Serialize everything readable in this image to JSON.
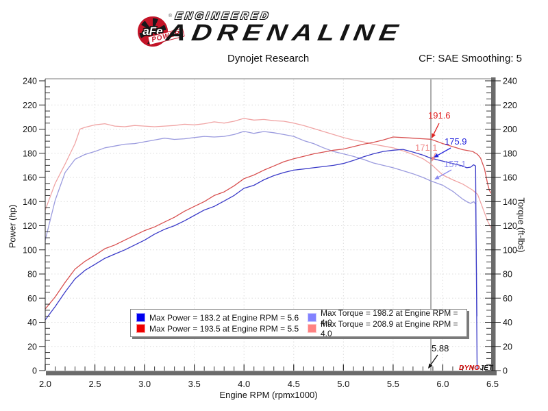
{
  "header": {
    "brand": {
      "circle_text": "aFe",
      "banner_text": "POWER",
      "reg_mark": "®",
      "line1": "ENGINEERED",
      "line2": "ADRENALINE"
    },
    "title": "Dynojet Research",
    "cf_text": "CF: SAE Smoothing: 5"
  },
  "chart_data": {
    "type": "line",
    "title": "Dynojet Research",
    "xlabel": "Engine RPM (rpmx1000)",
    "ylabel_left": "Power (hp)",
    "ylabel_right": "Torque (ft-lbs)",
    "xlim": [
      2.0,
      6.5
    ],
    "ylim_left": [
      0,
      240
    ],
    "ylim_right": [
      0,
      240
    ],
    "x_tick_step": 0.5,
    "x_minor_step": 0.1,
    "y_tick_step": 20,
    "y_minor_step": 5,
    "grid": "dotted",
    "legend_position": "bottom-center",
    "cursor_rpm": 5.88,
    "series": [
      {
        "name": "torque-red",
        "unit": "ft-lbs",
        "color": "#f0a4a4",
        "max": 208.9,
        "max_rpm": 4.0,
        "cursor_value": 171.1,
        "points": [
          [
            2.0,
            133
          ],
          [
            2.1,
            155
          ],
          [
            2.2,
            171
          ],
          [
            2.3,
            188
          ],
          [
            2.35,
            200
          ],
          [
            2.4,
            201.5
          ],
          [
            2.5,
            203.5
          ],
          [
            2.6,
            204.5
          ],
          [
            2.7,
            202.5
          ],
          [
            2.8,
            202
          ],
          [
            2.9,
            203
          ],
          [
            3.0,
            202.5
          ],
          [
            3.1,
            202
          ],
          [
            3.2,
            202.5
          ],
          [
            3.3,
            203
          ],
          [
            3.4,
            204
          ],
          [
            3.5,
            203.5
          ],
          [
            3.6,
            204.5
          ],
          [
            3.7,
            206
          ],
          [
            3.8,
            205
          ],
          [
            3.9,
            206.5
          ],
          [
            4.0,
            208.9
          ],
          [
            4.1,
            207.5
          ],
          [
            4.2,
            208
          ],
          [
            4.3,
            207
          ],
          [
            4.4,
            206.5
          ],
          [
            4.5,
            205
          ],
          [
            4.6,
            203
          ],
          [
            4.7,
            200.5
          ],
          [
            4.8,
            198
          ],
          [
            4.9,
            195.5
          ],
          [
            5.0,
            193
          ],
          [
            5.1,
            191
          ],
          [
            5.2,
            189.5
          ],
          [
            5.3,
            187.5
          ],
          [
            5.4,
            186
          ],
          [
            5.5,
            184.5
          ],
          [
            5.6,
            182
          ],
          [
            5.7,
            179
          ],
          [
            5.8,
            175.5
          ],
          [
            5.88,
            171.1
          ],
          [
            6.0,
            162
          ],
          [
            6.1,
            158
          ],
          [
            6.2,
            154.5
          ],
          [
            6.3,
            149.5
          ],
          [
            6.35,
            146
          ],
          [
            6.4,
            135
          ],
          [
            6.45,
            124
          ],
          [
            6.49,
            117.5
          ]
        ]
      },
      {
        "name": "torque-blue",
        "unit": "ft-lbs",
        "color": "#9a9ade",
        "max": 198.2,
        "max_rpm": 4.0,
        "cursor_value": 157.1,
        "points": [
          [
            2.0,
            108
          ],
          [
            2.1,
            141
          ],
          [
            2.2,
            164
          ],
          [
            2.3,
            175
          ],
          [
            2.4,
            179
          ],
          [
            2.5,
            181.5
          ],
          [
            2.6,
            184.5
          ],
          [
            2.7,
            186
          ],
          [
            2.8,
            187.5
          ],
          [
            2.9,
            188
          ],
          [
            3.0,
            189.5
          ],
          [
            3.1,
            191
          ],
          [
            3.2,
            192.5
          ],
          [
            3.3,
            191.5
          ],
          [
            3.4,
            192
          ],
          [
            3.5,
            193
          ],
          [
            3.6,
            194
          ],
          [
            3.7,
            193.5
          ],
          [
            3.8,
            194
          ],
          [
            3.9,
            195.5
          ],
          [
            4.0,
            198.2
          ],
          [
            4.1,
            196.5
          ],
          [
            4.2,
            198
          ],
          [
            4.3,
            197
          ],
          [
            4.4,
            195.5
          ],
          [
            4.5,
            194
          ],
          [
            4.6,
            190.5
          ],
          [
            4.7,
            188
          ],
          [
            4.8,
            184.5
          ],
          [
            4.9,
            181.5
          ],
          [
            5.0,
            179.5
          ],
          [
            5.1,
            177.5
          ],
          [
            5.2,
            175
          ],
          [
            5.3,
            172
          ],
          [
            5.4,
            170
          ],
          [
            5.5,
            168
          ],
          [
            5.6,
            165.5
          ],
          [
            5.7,
            163
          ],
          [
            5.8,
            160
          ],
          [
            5.88,
            157.1
          ],
          [
            6.0,
            153.5
          ],
          [
            6.1,
            148.5
          ],
          [
            6.2,
            142
          ],
          [
            6.25,
            139.5
          ],
          [
            6.28,
            138.5
          ],
          [
            6.31,
            140
          ],
          [
            6.33,
            138
          ],
          [
            6.345,
            45
          ]
        ]
      },
      {
        "name": "power-red",
        "unit": "hp",
        "color": "#d85050",
        "max": 193.5,
        "max_rpm": 5.5,
        "cursor_value": 191.6,
        "points": [
          [
            2.0,
            51
          ],
          [
            2.1,
            61
          ],
          [
            2.2,
            73
          ],
          [
            2.3,
            84
          ],
          [
            2.4,
            90.5
          ],
          [
            2.5,
            95.5
          ],
          [
            2.6,
            101
          ],
          [
            2.7,
            104
          ],
          [
            2.8,
            108
          ],
          [
            2.9,
            112
          ],
          [
            3.0,
            116
          ],
          [
            3.1,
            119
          ],
          [
            3.2,
            123
          ],
          [
            3.3,
            127
          ],
          [
            3.4,
            132
          ],
          [
            3.5,
            136
          ],
          [
            3.6,
            140
          ],
          [
            3.7,
            145
          ],
          [
            3.8,
            148
          ],
          [
            3.9,
            153
          ],
          [
            4.0,
            159
          ],
          [
            4.1,
            162
          ],
          [
            4.2,
            166
          ],
          [
            4.3,
            169.5
          ],
          [
            4.4,
            173
          ],
          [
            4.5,
            175.5
          ],
          [
            4.6,
            177.5
          ],
          [
            4.7,
            179.5
          ],
          [
            4.8,
            181
          ],
          [
            4.9,
            182.5
          ],
          [
            5.0,
            183.5
          ],
          [
            5.1,
            185.5
          ],
          [
            5.2,
            187.5
          ],
          [
            5.3,
            189
          ],
          [
            5.4,
            191
          ],
          [
            5.5,
            193.5
          ],
          [
            5.6,
            193
          ],
          [
            5.7,
            192.5
          ],
          [
            5.8,
            192
          ],
          [
            5.88,
            191.6
          ],
          [
            6.0,
            188
          ],
          [
            6.1,
            185.5
          ],
          [
            6.2,
            183
          ],
          [
            6.3,
            181.5
          ],
          [
            6.35,
            179
          ],
          [
            6.38,
            176
          ],
          [
            6.42,
            167
          ],
          [
            6.45,
            155
          ],
          [
            6.47,
            149
          ],
          [
            6.49,
            146.5
          ]
        ]
      },
      {
        "name": "power-blue",
        "unit": "hp",
        "color": "#3a3ac8",
        "max": 183.2,
        "max_rpm": 5.6,
        "cursor_value": 175.9,
        "points": [
          [
            2.0,
            42
          ],
          [
            2.1,
            53
          ],
          [
            2.2,
            65
          ],
          [
            2.3,
            76
          ],
          [
            2.4,
            83
          ],
          [
            2.5,
            88
          ],
          [
            2.6,
            93
          ],
          [
            2.7,
            96.5
          ],
          [
            2.8,
            100
          ],
          [
            2.9,
            104
          ],
          [
            3.0,
            108
          ],
          [
            3.1,
            113
          ],
          [
            3.2,
            117
          ],
          [
            3.3,
            120
          ],
          [
            3.4,
            124
          ],
          [
            3.5,
            128.5
          ],
          [
            3.6,
            133
          ],
          [
            3.7,
            136
          ],
          [
            3.8,
            140.5
          ],
          [
            3.9,
            145
          ],
          [
            4.0,
            151
          ],
          [
            4.1,
            153.5
          ],
          [
            4.2,
            158
          ],
          [
            4.3,
            161.5
          ],
          [
            4.4,
            164
          ],
          [
            4.5,
            166
          ],
          [
            4.6,
            167
          ],
          [
            4.7,
            168
          ],
          [
            4.8,
            169
          ],
          [
            4.9,
            170
          ],
          [
            5.0,
            171.5
          ],
          [
            5.1,
            174
          ],
          [
            5.2,
            177
          ],
          [
            5.3,
            179.5
          ],
          [
            5.4,
            181.5
          ],
          [
            5.5,
            182.5
          ],
          [
            5.6,
            183.2
          ],
          [
            5.7,
            181
          ],
          [
            5.8,
            178.5
          ],
          [
            5.88,
            175.9
          ],
          [
            6.0,
            173.5
          ],
          [
            6.1,
            171.5
          ],
          [
            6.2,
            169.5
          ],
          [
            6.24,
            168
          ],
          [
            6.28,
            168.5
          ],
          [
            6.31,
            170.5
          ],
          [
            6.33,
            169.5
          ],
          [
            6.345,
            1
          ]
        ]
      }
    ],
    "legend": [
      {
        "swatch": "#0000ee",
        "border": "#9a9aff",
        "label": "Max Power = 183.2 at Engine RPM = 5.6"
      },
      {
        "swatch": "#8282ff",
        "border": "#c8c8ff",
        "label": "Max Torque = 198.2 at Engine RPM = 4.0"
      },
      {
        "swatch": "#ee0000",
        "border": "#ff9a9a",
        "label": "Max Power = 193.5 at Engine RPM = 5.5"
      },
      {
        "swatch": "#ff8282",
        "border": "#ffc8c8",
        "label": "Max Torque = 208.9 at Engine RPM = 4.0"
      }
    ],
    "callouts": [
      {
        "label": "191.6",
        "color": "#e02020"
      },
      {
        "label": "175.9",
        "color": "#2222dd"
      },
      {
        "label": "171.1",
        "color": "#f08888"
      },
      {
        "label": "157.1",
        "color": "#8888ee"
      },
      {
        "label": "5.88",
        "color": "#111111"
      }
    ],
    "watermark": {
      "part1": "DYNO",
      "part2": "JET"
    }
  }
}
